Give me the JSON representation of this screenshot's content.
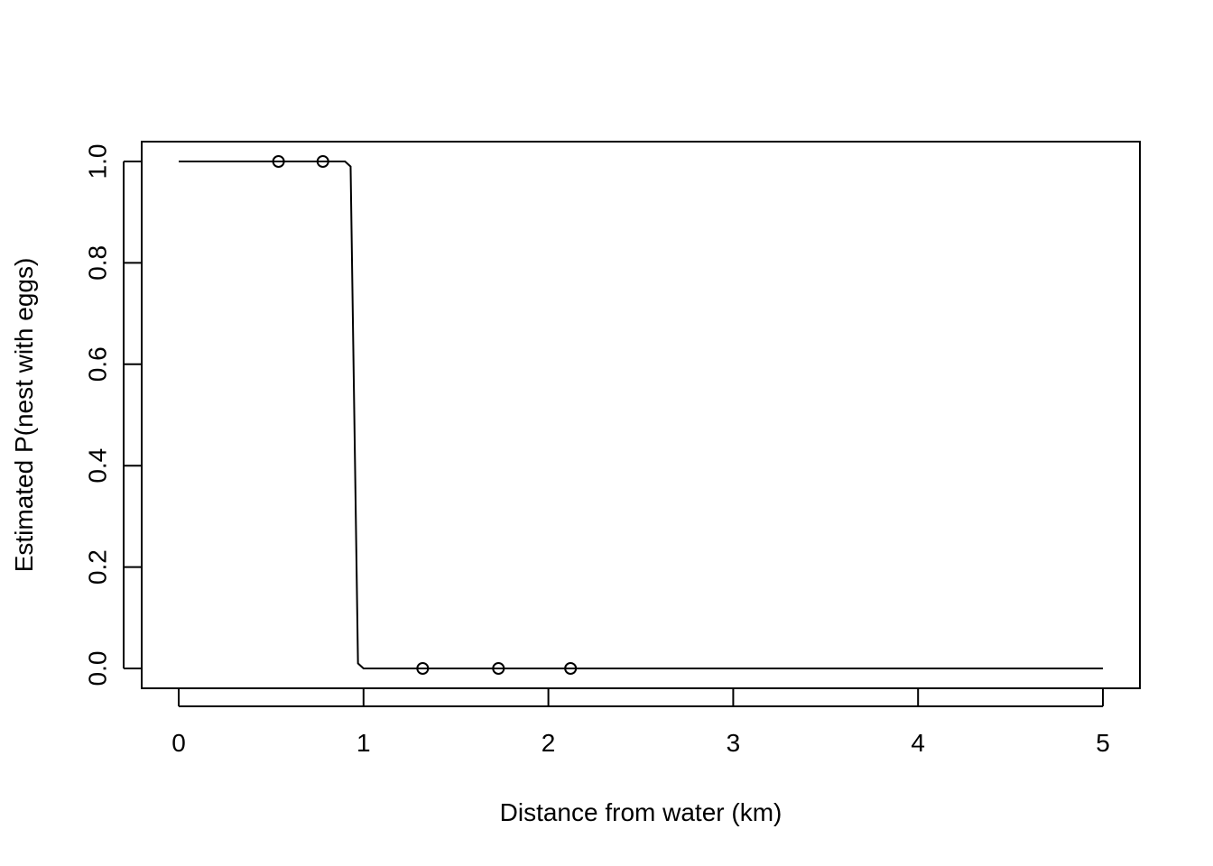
{
  "chart_data": {
    "type": "line",
    "title": "",
    "xlabel": "Distance from water (km)",
    "ylabel": "Estimated P(nest with eggs)",
    "xlim": [
      0,
      5
    ],
    "ylim": [
      0,
      1
    ],
    "x_ticks": [
      "0",
      "1",
      "2",
      "3",
      "4",
      "5"
    ],
    "y_ticks": [
      "0.0",
      "0.2",
      "0.4",
      "0.6",
      "0.8",
      "1.0"
    ],
    "grid": false,
    "legend": "none",
    "series": [
      {
        "type": "line",
        "x": [
          0,
          0.9,
          0.93,
          0.95,
          0.97,
          1.0,
          5.0
        ],
        "values": [
          1,
          1,
          0.99,
          0.5,
          0.01,
          0,
          0
        ]
      },
      {
        "type": "scatter",
        "x": [
          0.54,
          0.78,
          1.32,
          1.73,
          2.12
        ],
        "values": [
          1,
          1,
          0,
          0,
          0
        ]
      }
    ]
  }
}
